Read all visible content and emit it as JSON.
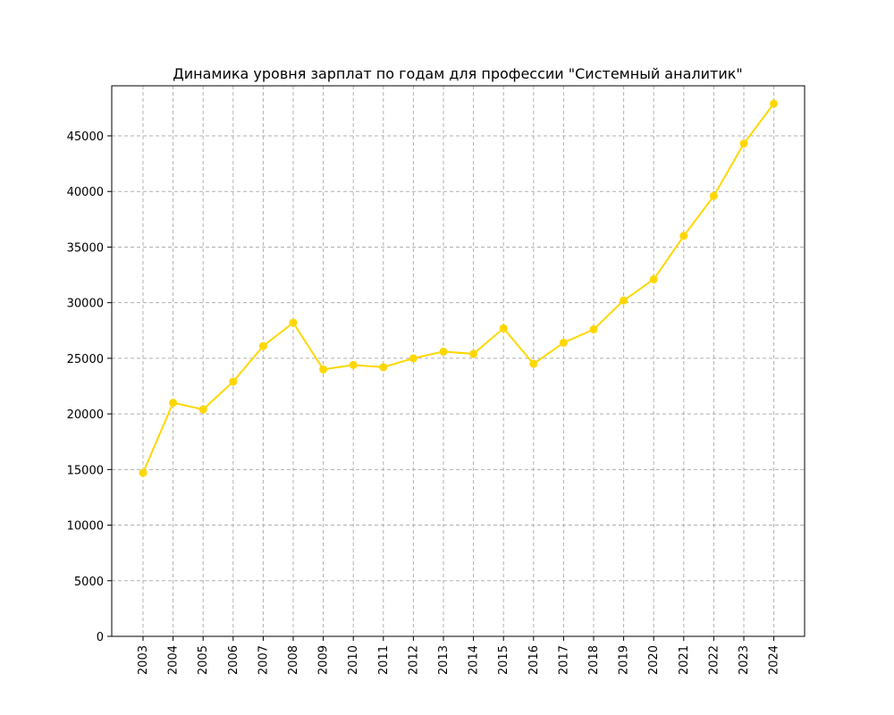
{
  "chart_data": {
    "type": "line",
    "title": "Динамика уровня зарплат по годам для профессии \"Системный аналитик\"",
    "xlabel": "",
    "ylabel": "",
    "x": [
      "2003",
      "2004",
      "2005",
      "2006",
      "2007",
      "2008",
      "2009",
      "2010",
      "2011",
      "2012",
      "2013",
      "2014",
      "2015",
      "2016",
      "2017",
      "2018",
      "2019",
      "2020",
      "2021",
      "2022",
      "2023",
      "2024"
    ],
    "series": [
      {
        "values": [
          14700,
          21000,
          20400,
          22900,
          26100,
          28200,
          24000,
          24400,
          24200,
          25000,
          25600,
          25400,
          27700,
          24500,
          26400,
          27600,
          30200,
          32100,
          36000,
          39600,
          44300,
          47900
        ]
      }
    ],
    "ylim": [
      0,
      49500
    ],
    "y_ticks": [
      0,
      5000,
      10000,
      15000,
      20000,
      25000,
      30000,
      35000,
      40000,
      45000
    ],
    "grid": true,
    "line_color": "#ffd700",
    "marker": "circle"
  }
}
